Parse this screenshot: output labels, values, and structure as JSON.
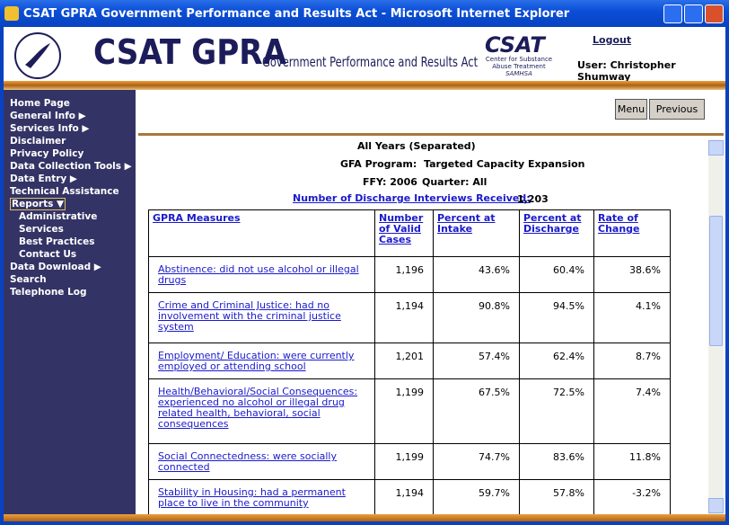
{
  "window": {
    "title": "CSAT GPRA Government Performance and Results Act - Microsoft Internet Explorer"
  },
  "header": {
    "brand": "CSAT GPRA",
    "tagline": "Government Performance and Results Act",
    "csat_logo": "CSAT",
    "csat_lines": [
      "Center for Substance",
      "Abuse Treatment",
      "SAMHSA"
    ],
    "logout": "Logout",
    "user": "User: Christopher Shumway"
  },
  "nav": {
    "items": [
      "Home Page",
      "General Info ▶",
      "Services Info ▶",
      "Disclaimer",
      "Privacy Policy",
      "Data Collection Tools ▶",
      "Data Entry ▶",
      "Technical Assistance",
      "Reports ▼",
      "Data Download ▶",
      "Search",
      "Telephone Log"
    ],
    "reports_sub": [
      "Administrative",
      "Services",
      "Best Practices",
      "Contact Us"
    ]
  },
  "buttons": [
    "Menu",
    "Previous"
  ],
  "report": {
    "period": "All Years (Separated)",
    "gfa_label": "GFA Program:",
    "gfa_value": "Targeted Capacity Expansion",
    "ffy": "FFY: 2006",
    "quarter": "Quarter: All",
    "interviews_label": "Number of Discharge Interviews Received:",
    "interviews_value": "1,203"
  },
  "table": {
    "headers": [
      "GPRA Measures",
      "Number of Valid Cases",
      "Percent at Intake",
      "Percent at Discharge",
      "Rate of Change"
    ],
    "rows": [
      [
        "Abstinence:  did not use alcohol or illegal drugs",
        "1,196",
        "43.6%",
        "60.4%",
        "38.6%"
      ],
      [
        "Crime and Criminal Justice:  had no involvement with the criminal justice system",
        "1,194",
        "90.8%",
        "94.5%",
        "4.1%"
      ],
      [
        "Employment/ Education:  were currently employed or attending school",
        "1,201",
        "57.4%",
        "62.4%",
        "8.7%"
      ],
      [
        "Health/Behavioral/Social Consequences:  experienced no alcohol or illegal drug related health, behavioral, social consequences",
        "1,199",
        "67.5%",
        "72.5%",
        "7.4%"
      ],
      [
        "Social Connectedness:  were socially connected",
        "1,199",
        "74.7%",
        "83.6%",
        "11.8%"
      ],
      [
        "Stability in Housing:  had a permanent place to live in the community",
        "1,194",
        "59.7%",
        "57.8%",
        "-3.2%"
      ]
    ]
  }
}
